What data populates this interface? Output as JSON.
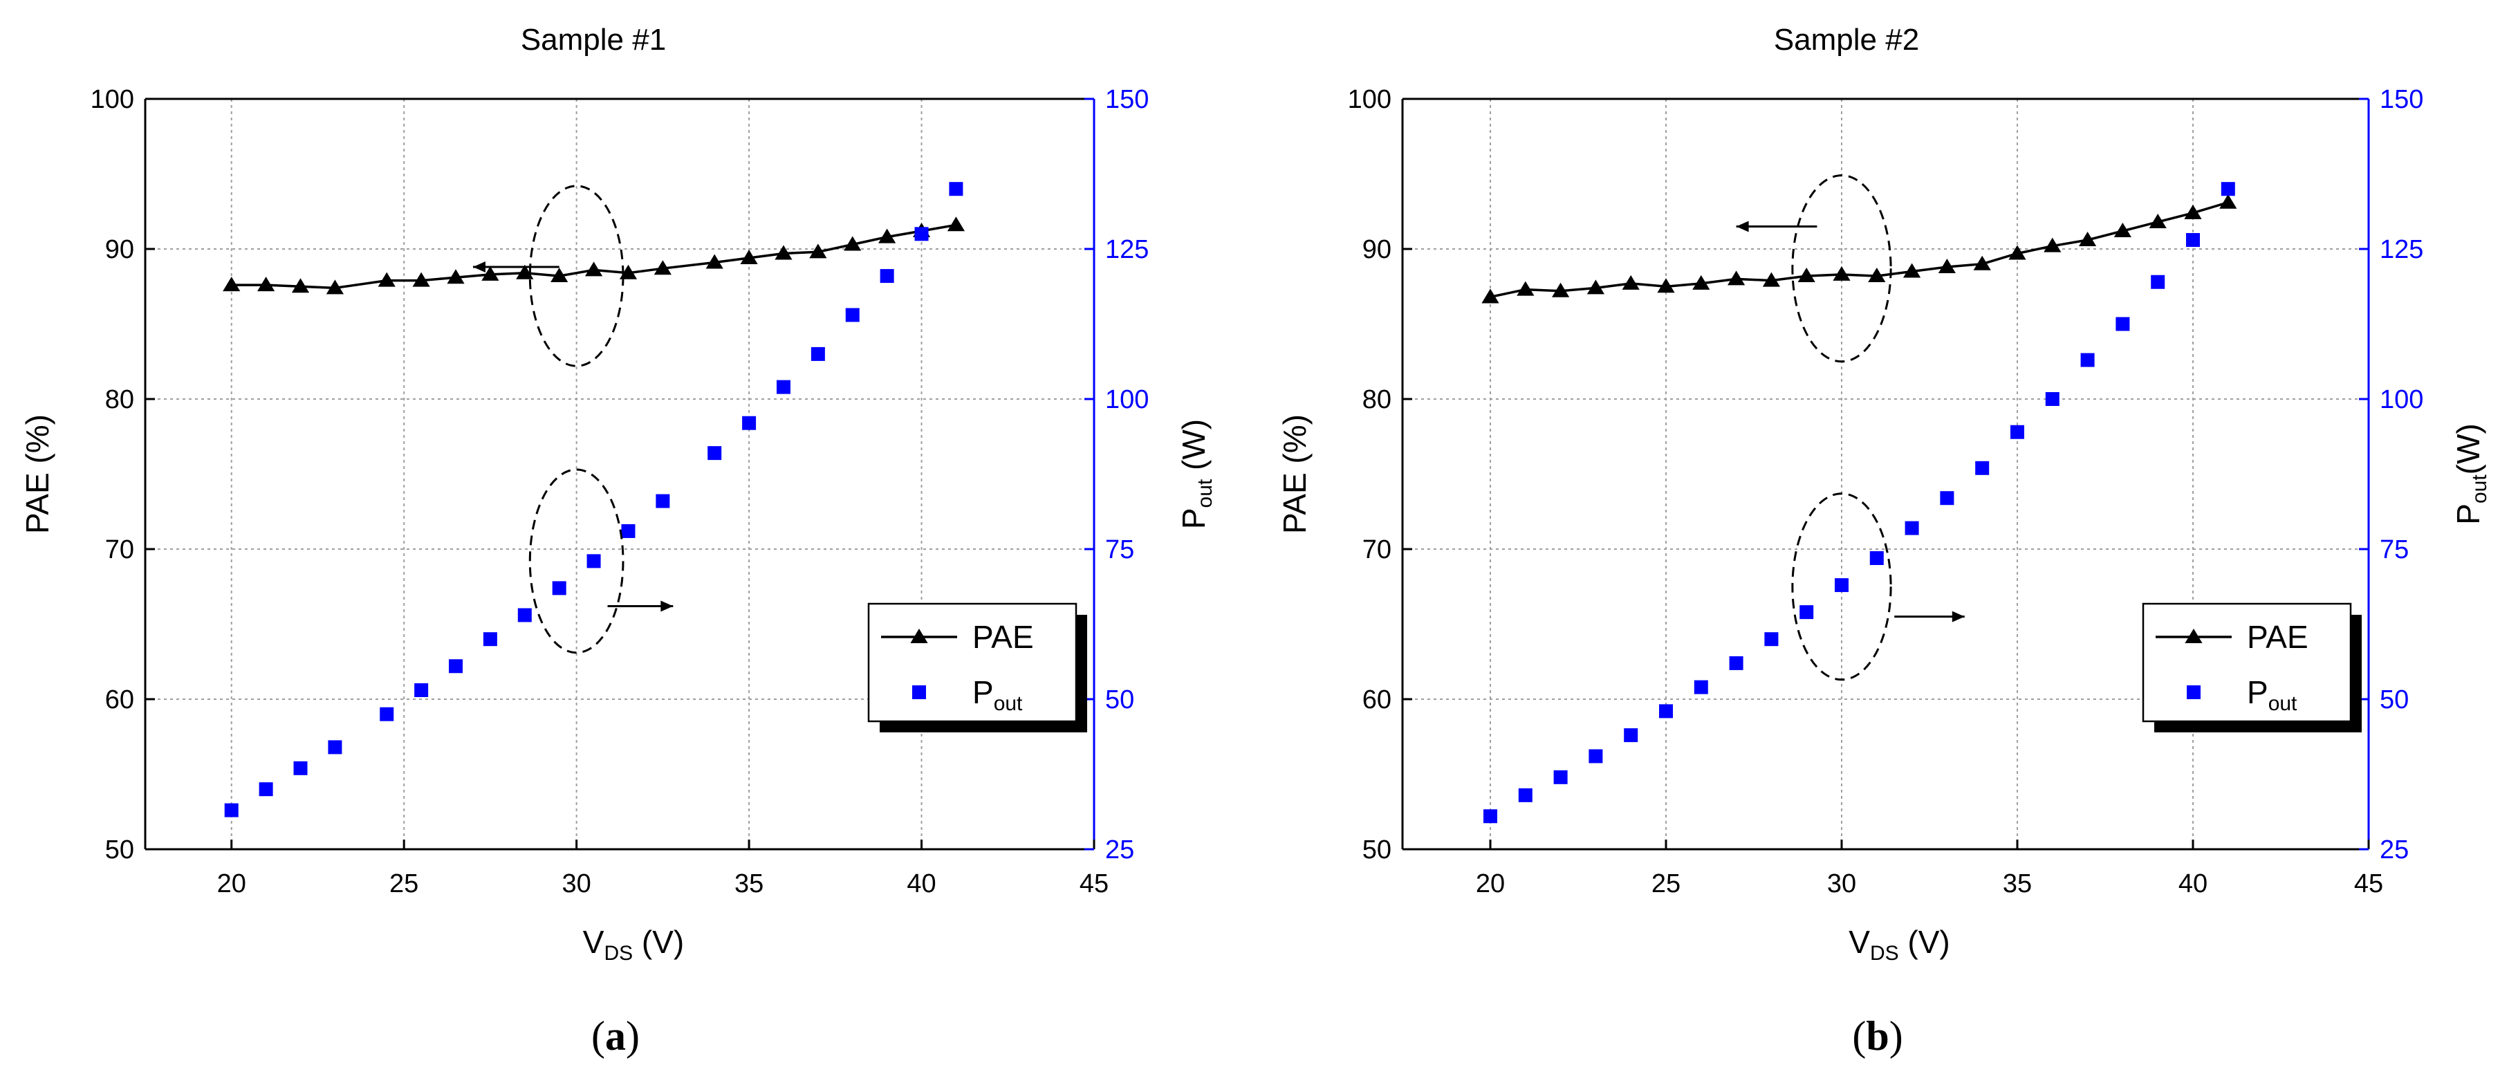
{
  "figure": {
    "colors": {
      "pae": "#000000",
      "pout": "#0000ff",
      "grid": "#9e9e9e",
      "right_axis": "#0000ff"
    }
  },
  "chart_data": [
    {
      "type": "scatter",
      "panel_label": {
        "open": "(",
        "letter": "a",
        "close": ")"
      },
      "title": "Sample #1",
      "xlabel": {
        "main": "V",
        "sub": "DS",
        "rest": " (V)"
      },
      "ylabel_left": "PAE (%)",
      "ylabel_right": {
        "main": "P",
        "sub": "out",
        "rest": " (W)"
      },
      "xlim": [
        17.5,
        45
      ],
      "xticks": [
        20,
        25,
        30,
        35,
        40,
        45
      ],
      "ylim_left": [
        50,
        100
      ],
      "yticks_left": [
        50,
        60,
        70,
        80,
        90,
        100
      ],
      "ylim_right": [
        25,
        150
      ],
      "yticks_right": [
        25,
        50,
        75,
        100,
        125,
        150
      ],
      "grid": true,
      "legend": {
        "position": "lower-right",
        "entries": [
          {
            "name": "PAE",
            "sub": "",
            "marker": "triangle-line"
          },
          {
            "name": "P",
            "sub": "out",
            "marker": "square"
          }
        ]
      },
      "annotations": [
        {
          "label": "PAE-left-axis-arrow",
          "ellipse_center": [
            30,
            88.2
          ],
          "ellipse_radii": [
            1.35,
            6.0
          ],
          "arrow_from": [
            29.5,
            88.8
          ],
          "arrow_to": [
            27,
            88.8
          ]
        },
        {
          "label": "Pout-right-axis-arrow",
          "ellipse_center": [
            30,
            69.2
          ],
          "ellipse_radii": [
            1.35,
            6.1
          ],
          "arrow_from": [
            30.9,
            66.2
          ],
          "arrow_to": [
            32.8,
            66.2
          ]
        }
      ],
      "series": [
        {
          "name": "PAE",
          "axis": "left",
          "marker": "triangle",
          "line": true,
          "x": [
            20,
            21,
            22,
            23,
            24.5,
            25.5,
            26.5,
            27.5,
            28.5,
            29.5,
            30.5,
            31.5,
            32.5,
            34,
            35,
            36,
            37,
            38,
            39,
            40,
            41
          ],
          "y": [
            87.6,
            87.6,
            87.5,
            87.4,
            87.9,
            87.9,
            88.1,
            88.3,
            88.4,
            88.2,
            88.6,
            88.4,
            88.7,
            89.1,
            89.4,
            89.7,
            89.8,
            90.3,
            90.8,
            91.2,
            91.6
          ]
        },
        {
          "name": "Pout",
          "axis": "right",
          "marker": "square",
          "line": false,
          "x": [
            20,
            21,
            22,
            23,
            24.5,
            25.5,
            26.5,
            27.5,
            28.5,
            29.5,
            30.5,
            31.5,
            32.5,
            34,
            35,
            36,
            37,
            38,
            39,
            40,
            41
          ],
          "y": [
            31.5,
            35,
            38.5,
            42,
            47.5,
            51.5,
            55.5,
            60,
            64,
            68.5,
            73,
            78,
            83,
            91,
            96,
            102,
            107.5,
            114,
            120.5,
            127.5,
            135
          ]
        }
      ]
    },
    {
      "type": "scatter",
      "panel_label": {
        "open": "(",
        "letter": "b",
        "close": ")"
      },
      "title": "Sample #2",
      "xlabel": {
        "main": "V",
        "sub": "DS",
        "rest": " (V)"
      },
      "ylabel_left": "PAE (%)",
      "ylabel_right": {
        "main": "P",
        "sub": "out",
        "rest": "(W)"
      },
      "xlim": [
        17.5,
        45
      ],
      "xticks": [
        20,
        25,
        30,
        35,
        40,
        45
      ],
      "ylim_left": [
        50,
        100
      ],
      "yticks_left": [
        50,
        60,
        70,
        80,
        90,
        100
      ],
      "ylim_right": [
        25,
        150
      ],
      "yticks_right": [
        25,
        50,
        75,
        100,
        125,
        150
      ],
      "grid": true,
      "legend": {
        "position": "lower-right",
        "entries": [
          {
            "name": "PAE",
            "sub": "",
            "marker": "triangle-line"
          },
          {
            "name": "P",
            "sub": "out",
            "marker": "square"
          }
        ]
      },
      "annotations": [
        {
          "label": "PAE-left-axis-arrow",
          "ellipse_center": [
            30,
            88.7
          ],
          "ellipse_radii": [
            1.4,
            6.2
          ],
          "arrow_from": [
            29.3,
            91.5
          ],
          "arrow_to": [
            27,
            91.5
          ]
        },
        {
          "label": "Pout-right-axis-arrow",
          "ellipse_center": [
            30,
            67.5
          ],
          "ellipse_radii": [
            1.4,
            6.2
          ],
          "arrow_from": [
            31.5,
            65.5
          ],
          "arrow_to": [
            33.5,
            65.5
          ]
        }
      ],
      "series": [
        {
          "name": "PAE",
          "axis": "left",
          "marker": "triangle",
          "line": true,
          "x": [
            20,
            21,
            22,
            23,
            24,
            25,
            26,
            27,
            28,
            29,
            30,
            31,
            32,
            33,
            34,
            35,
            36,
            37,
            38,
            39,
            40,
            41
          ],
          "y": [
            86.8,
            87.3,
            87.2,
            87.4,
            87.7,
            87.5,
            87.7,
            88.0,
            87.9,
            88.2,
            88.3,
            88.2,
            88.5,
            88.8,
            89.0,
            89.7,
            90.2,
            90.6,
            91.2,
            91.8,
            92.4,
            93.1
          ]
        },
        {
          "name": "Pout",
          "axis": "right",
          "marker": "square",
          "line": false,
          "x": [
            20,
            21,
            22,
            23,
            24,
            25,
            26,
            27,
            28,
            29,
            30,
            31,
            32,
            33,
            34,
            35,
            36,
            37,
            38,
            39,
            40,
            41
          ],
          "y": [
            30.5,
            34,
            37,
            40.5,
            44,
            48,
            52,
            56,
            60,
            64.5,
            69,
            73.5,
            78.5,
            83.5,
            88.5,
            94.5,
            100,
            106.5,
            112.5,
            119.5,
            126.5,
            135
          ]
        }
      ]
    }
  ]
}
